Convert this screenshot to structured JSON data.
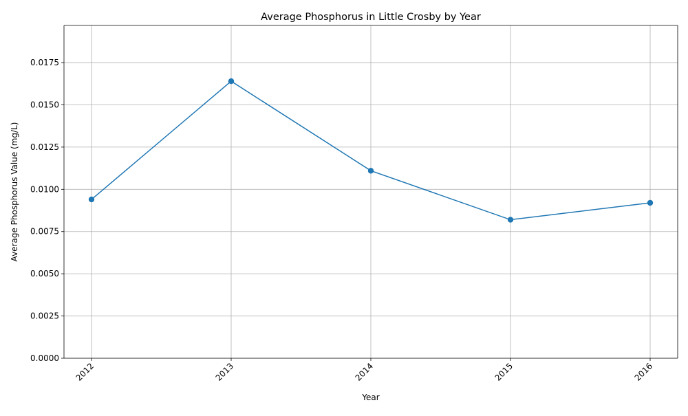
{
  "chart_data": {
    "type": "line",
    "title": "Average Phosphorus in Little Crosby by Year",
    "xlabel": "Year",
    "ylabel": "Average Phosphorus Value (mg/L)",
    "categories": [
      "2012",
      "2013",
      "2014",
      "2015",
      "2016"
    ],
    "series": [
      {
        "values": [
          0.0094,
          0.0164,
          0.0111,
          0.0082,
          0.0092
        ]
      }
    ],
    "ylim": [
      0,
      0.0197
    ],
    "yticks": [
      "0.0000",
      "0.0025",
      "0.0050",
      "0.0075",
      "0.0100",
      "0.0125",
      "0.0150",
      "0.0175"
    ],
    "grid": true,
    "line_color": "#1f77b4",
    "grid_color": "#b0b0b0"
  }
}
